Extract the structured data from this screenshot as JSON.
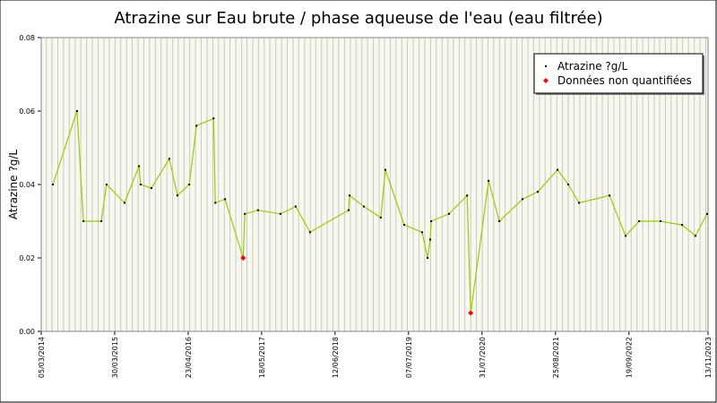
{
  "chart_data": {
    "type": "line",
    "title": "Atrazine sur Eau brute / phase aqueuse de l'eau (eau filtrée)",
    "y_label": "Atrazine ?g/L",
    "series": [
      {
        "name": "Atrazine ?g/L",
        "color": "#99cc00",
        "marker_color": "#000000",
        "x": [
          "06/05/2014",
          "11/09/2014",
          "15/10/2014",
          "18/01/2015",
          "15/02/2015",
          "21/05/2015",
          "06/08/2015",
          "15/08/2015",
          "11/10/2015",
          "14/01/2016",
          "26/02/2016",
          "29/04/2016",
          "06/06/2016",
          "05/09/2016",
          "14/09/2016",
          "05/11/2016",
          "09/02/2017",
          "18/02/2017",
          "29/04/2017",
          "26/08/2017",
          "15/11/2017",
          "30/01/2018",
          "23/08/2018",
          "28/08/2018",
          "12/11/2018",
          "10/02/2019",
          "06/03/2019",
          "14/06/2019",
          "17/09/2019",
          "16/10/2019",
          "30/10/2019",
          "04/11/2019",
          "07/02/2020",
          "13/05/2020",
          "01/06/2020",
          "04/09/2020",
          "31/10/2020",
          "03/03/2021",
          "23/05/2021",
          "05/09/2021",
          "01/11/2021",
          "28/12/2021",
          "08/06/2022",
          "01/09/2022",
          "12/11/2022",
          "06/03/2023",
          "28/06/2023",
          "07/09/2023",
          "08/11/2023"
        ],
        "values": [
          0.04,
          0.06,
          0.03,
          0.03,
          0.04,
          0.035,
          0.045,
          0.04,
          0.039,
          0.047,
          0.037,
          0.04,
          0.056,
          0.058,
          0.035,
          0.036,
          0.02,
          0.032,
          0.033,
          0.032,
          0.034,
          0.027,
          0.033,
          0.037,
          0.034,
          0.031,
          0.044,
          0.029,
          0.027,
          0.02,
          0.025,
          0.03,
          0.032,
          0.037,
          0.005,
          0.041,
          0.03,
          0.036,
          0.038,
          0.044,
          0.04,
          0.035,
          0.037,
          0.026,
          0.03,
          0.03,
          0.029,
          0.026,
          0.032
        ]
      },
      {
        "name": "Données non quantifiées",
        "color": "#ff0000",
        "x": [
          "09/02/2017",
          "01/06/2020"
        ],
        "values": [
          0.02,
          0.005
        ]
      }
    ],
    "xlim": [
      "05/03/2014",
      "13/11/2023"
    ],
    "xticks": [
      "05/03/2014",
      "30/03/2015",
      "23/04/2016",
      "18/05/2017",
      "12/06/2018",
      "07/07/2019",
      "31/07/2020",
      "25/08/2021",
      "19/09/2022",
      "13/11/2023"
    ],
    "ylim": [
      0,
      0.08
    ],
    "yticks": [
      {
        "value": 0,
        "label": "0.00"
      },
      0.02,
      0.04,
      0.06,
      0.08
    ],
    "minor_grid": "month",
    "legend": "upper right"
  }
}
